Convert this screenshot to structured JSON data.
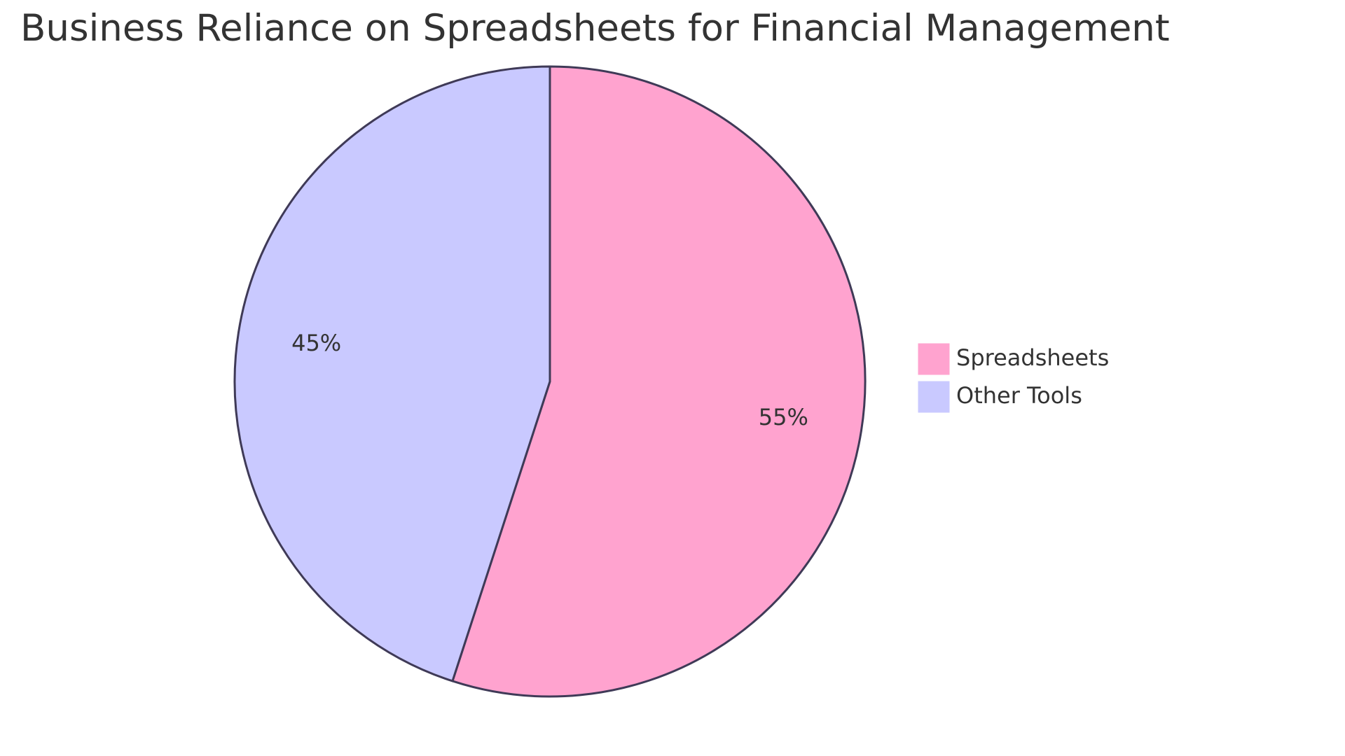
{
  "chart_data": {
    "type": "pie",
    "title": "Business Reliance on Spreadsheets for Financial Management",
    "slices": [
      {
        "label": "Spreadsheets",
        "value": 55,
        "display": "55%",
        "color": "#FFA3CF"
      },
      {
        "label": "Other Tools",
        "value": 45,
        "display": "45%",
        "color": "#C9C9FF"
      }
    ],
    "legend_position": "right",
    "stroke_color": "#3F3A57"
  }
}
